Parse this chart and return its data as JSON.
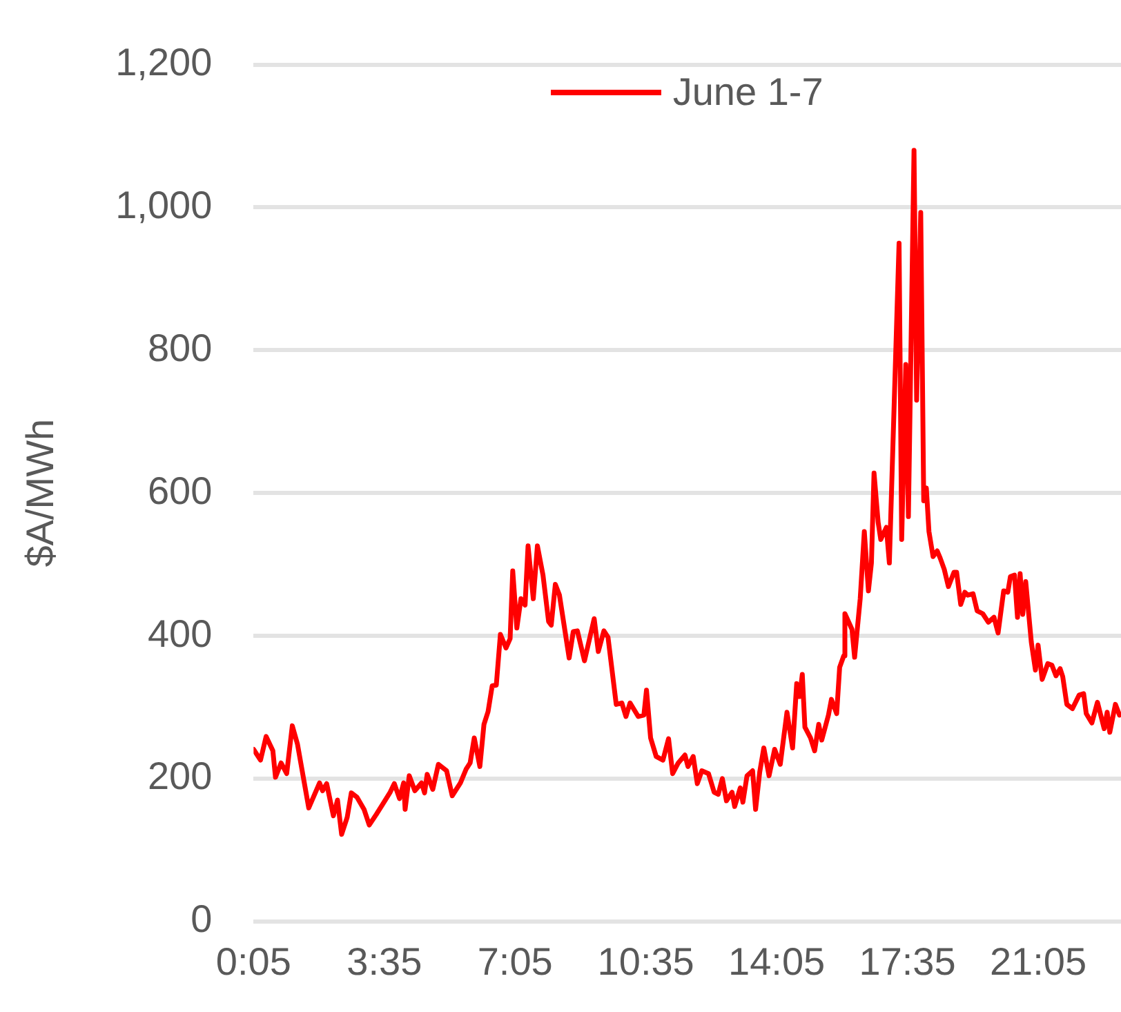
{
  "chart_data": {
    "type": "line",
    "ylabel": "$A/MWh",
    "x": [
      0.0833,
      0.27,
      0.42,
      0.6,
      0.67,
      0.82,
      0.97,
      1.12,
      1.26,
      1.56,
      1.85,
      1.93,
      2.04,
      2.22,
      2.33,
      2.44,
      2.59,
      2.7,
      2.85,
      3.04,
      3.18,
      3.37,
      3.55,
      3.74,
      3.85,
      3.99,
      4.1,
      4.14,
      4.25,
      4.4,
      4.58,
      4.66,
      4.73,
      4.88,
      5.03,
      5.25,
      5.4,
      5.62,
      5.77,
      5.88,
      5.99,
      6.14,
      6.25,
      6.36,
      6.47,
      6.58,
      6.69,
      6.84,
      6.95,
      7.02,
      7.13,
      7.24,
      7.35,
      7.43,
      7.57,
      7.68,
      7.83,
      7.98,
      8.05,
      8.16,
      8.27,
      8.53,
      8.64,
      8.75,
      8.94,
      9.2,
      9.31,
      9.46,
      9.57,
      9.79,
      9.94,
      10.05,
      10.16,
      10.38,
      10.53,
      10.6,
      10.71,
      10.86,
      11.04,
      11.19,
      11.3,
      11.45,
      11.63,
      11.71,
      11.85,
      11.96,
      12.08,
      12.26,
      12.41,
      12.52,
      12.63,
      12.74,
      12.89,
      12.96,
      13.11,
      13.18,
      13.29,
      13.44,
      13.52,
      13.63,
      13.74,
      13.88,
      14.03,
      14.18,
      14.36,
      14.51,
      14.62,
      14.7,
      14.77,
      14.84,
      14.99,
      15.1,
      15.21,
      15.29,
      15.47,
      15.55,
      15.69,
      15.77,
      15.88,
      15.91,
      16.1,
      16.17,
      16.32,
      16.43,
      16.54,
      16.62,
      16.69,
      16.8,
      16.87,
      17.02,
      17.1,
      17.36,
      17.43,
      17.54,
      17.61,
      17.76,
      17.83,
      17.94,
      18.02,
      18.09,
      18.16,
      18.27,
      18.38,
      18.46,
      18.57,
      18.68,
      18.83,
      18.9,
      19.01,
      19.12,
      19.2,
      19.34,
      19.45,
      19.6,
      19.75,
      19.9,
      20.01,
      20.16,
      20.27,
      20.34,
      20.45,
      20.53,
      20.6,
      20.67,
      20.75,
      20.9,
      21.01,
      21.08,
      21.19,
      21.34,
      21.45,
      21.56,
      21.67,
      21.74,
      21.85,
      22.0,
      22.18,
      22.3,
      22.37,
      22.52,
      22.67,
      22.85,
      22.93,
      23.0,
      23.15,
      23.26
    ],
    "series": [
      {
        "name": "June 1-7",
        "color": "#ff0000",
        "values": [
          241,
          226,
          259,
          239,
          202,
          222,
          207,
          274,
          248,
          159,
          194,
          183,
          193,
          148,
          170,
          122,
          146,
          180,
          174,
          157,
          135,
          150,
          165,
          181,
          193,
          172,
          194,
          157,
          204,
          183,
          194,
          180,
          206,
          185,
          220,
          211,
          176,
          194,
          213,
          222,
          257,
          217,
          276,
          294,
          330,
          331,
          402,
          383,
          396,
          491,
          411,
          452,
          443,
          526,
          452,
          526,
          485,
          420,
          415,
          472,
          457,
          369,
          406,
          407,
          365,
          424,
          378,
          407,
          398,
          304,
          306,
          287,
          306,
          287,
          289,
          324,
          257,
          231,
          226,
          256,
          207,
          222,
          233,
          217,
          231,
          193,
          211,
          207,
          181,
          178,
          200,
          169,
          181,
          161,
          187,
          167,
          204,
          211,
          157,
          209,
          243,
          204,
          241,
          220,
          293,
          243,
          333,
          315,
          346,
          272,
          257,
          239,
          276,
          254,
          289,
          311,
          291,
          356,
          372,
          431,
          409,
          370,
          452,
          546,
          463,
          502,
          628,
          559,
          535,
          552,
          502,
          950,
          535,
          780,
          567,
          1080,
          730,
          993,
          589,
          607,
          546,
          511,
          519,
          509,
          493,
          469,
          489,
          489,
          444,
          461,
          457,
          459,
          435,
          431,
          419,
          426,
          404,
          463,
          461,
          483,
          485,
          426,
          487,
          430,
          476,
          391,
          352,
          387,
          339,
          361,
          359,
          344,
          354,
          343,
          304,
          298,
          317,
          319,
          291,
          278,
          307,
          270,
          293,
          265,
          304,
          289
        ]
      }
    ],
    "xlim": [
      0.0833,
      23.3
    ],
    "xticks": [
      {
        "value": 0.0833,
        "label": "0:05"
      },
      {
        "value": 3.5833,
        "label": "3:35"
      },
      {
        "value": 7.0833,
        "label": "7:05"
      },
      {
        "value": 10.5833,
        "label": "10:35"
      },
      {
        "value": 14.0833,
        "label": "14:05"
      },
      {
        "value": 17.5833,
        "label": "17:35"
      },
      {
        "value": 21.0833,
        "label": "21:05"
      }
    ],
    "ylim": [
      0,
      1200
    ],
    "yticks": [
      0,
      200,
      400,
      600,
      800,
      {
        "value": 1000,
        "label": "1,000"
      },
      {
        "value": 1200,
        "label": "1,200"
      }
    ],
    "grid": "y",
    "legend": "top",
    "marker": "none",
    "line_style": "solid"
  }
}
